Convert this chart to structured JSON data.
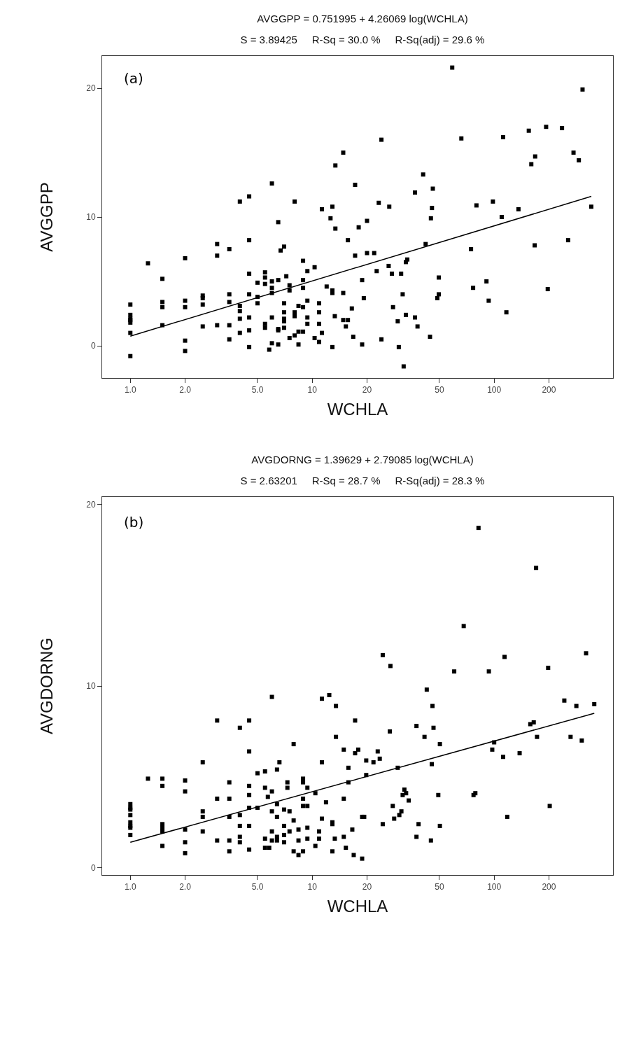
{
  "chart_data": [
    {
      "type": "scatter",
      "title": "AVGGPP = 0.751995 + 4.26069 log(WCHLA)",
      "subtitle": "S = 3.89425     R-Sq = 30.0 %     R-Sq(adj) = 29.6 %",
      "xlabel": "WCHLA",
      "ylabel": "AVGGPP",
      "annotations": [
        "(a)"
      ],
      "log": "x",
      "grid": false,
      "xlim": [
        0.7,
        450
      ],
      "xticks": [
        {
          "value": 1,
          "label": "1.0"
        },
        {
          "value": 2,
          "label": "2.0"
        },
        {
          "value": 5,
          "label": "5.0"
        },
        10,
        20,
        50,
        100,
        200
      ],
      "ylim": [
        -2.5,
        22.5
      ],
      "yticks": [
        0,
        10,
        20
      ],
      "series": [
        {
          "marker": "square",
          "color": "#000000",
          "x": [
            1,
            1,
            1,
            1,
            1,
            1,
            1,
            1.25,
            1.5,
            1.5,
            1.5,
            1.5,
            2,
            2,
            2,
            2,
            2,
            2.5,
            2.5,
            2.5,
            2.5,
            3,
            3,
            3,
            3.5,
            3.5,
            3.5,
            3.5,
            3.5,
            4,
            4,
            4,
            4,
            4,
            4.5,
            4.5,
            4.5,
            4.5,
            4.5,
            4.5,
            4.5,
            5,
            5,
            5,
            5.5,
            5.5,
            5.5,
            5.5,
            5.5,
            5.8,
            6,
            6,
            6,
            6,
            6,
            6,
            6.5,
            6.5,
            6.5,
            6.5,
            6.5,
            6.7,
            7,
            7,
            7,
            7,
            7,
            7,
            7.2,
            7.5,
            7.5,
            7.5,
            8,
            8,
            8,
            8,
            8.4,
            8.4,
            8.4,
            8.9,
            8.9,
            8.9,
            8.9,
            8.9,
            9.4,
            9.4,
            9.4,
            9.4,
            10.3,
            10.3,
            10.9,
            10.9,
            10.9,
            10.9,
            11.3,
            11.3,
            12,
            12.6,
            12.9,
            12.9,
            12.9,
            12.9,
            13.3,
            13.4,
            13.4,
            14.8,
            14.8,
            14.8,
            15.3,
            15.7,
            15.7,
            16.5,
            16.8,
            17.2,
            17.2,
            18,
            18.8,
            18.8,
            19.2,
            20,
            20,
            21.9,
            22.6,
            23.2,
            24,
            24,
            26.3,
            26.5,
            27.4,
            27.8,
            29.5,
            29.9,
            30.8,
            31.4,
            31.8,
            32.7,
            32.7,
            33.3,
            36.7,
            36.7,
            37.9,
            40.7,
            42,
            44.4,
            44.9,
            45.5,
            46,
            48.7,
            49.6,
            49.6,
            58.8,
            66,
            74.6,
            76.6,
            79.9,
            90.7,
            93.3,
            98.4,
            110,
            112,
            116.7,
            136,
            155,
            160,
            167,
            168,
            193,
            197,
            236,
            255,
            273,
            292,
            306,
            342
          ],
          "values": [
            3.2,
            2.4,
            2.1,
            2.0,
            1.8,
            1.0,
            -0.8,
            6.4,
            5.2,
            3.4,
            3.0,
            1.6,
            6.8,
            3.5,
            3.0,
            0.4,
            -0.4,
            3.9,
            3.7,
            3.2,
            1.5,
            7.9,
            7.0,
            1.6,
            7.5,
            4.0,
            3.4,
            1.6,
            0.5,
            11.2,
            3.1,
            2.7,
            2.1,
            1.0,
            11.6,
            8.2,
            5.6,
            4.0,
            2.2,
            1.2,
            -0.1,
            4.9,
            3.8,
            3.3,
            5.7,
            5.3,
            4.8,
            1.7,
            1.4,
            -0.3,
            12.6,
            5.0,
            4.5,
            4.1,
            2.2,
            0.2,
            9.6,
            5.1,
            1.3,
            1.2,
            0.1,
            7.4,
            7.7,
            3.3,
            2.6,
            2.1,
            1.9,
            1.4,
            5.4,
            4.7,
            4.3,
            0.6,
            11.2,
            2.6,
            2.3,
            0.8,
            3.1,
            1.1,
            0.1,
            6.6,
            5.1,
            4.5,
            3.0,
            1.1,
            5.8,
            3.5,
            2.2,
            1.7,
            6.1,
            0.6,
            3.3,
            2.6,
            1.7,
            0.3,
            10.6,
            1.0,
            4.6,
            9.9,
            10.8,
            4.3,
            4.1,
            -0.1,
            2.3,
            14.0,
            9.1,
            15.0,
            4.1,
            2.0,
            1.5,
            8.2,
            2.0,
            2.9,
            0.7,
            12.5,
            7.0,
            9.2,
            5.1,
            0.1,
            3.7,
            9.7,
            7.2,
            7.2,
            5.8,
            11.1,
            16.0,
            0.5,
            6.2,
            10.8,
            5.6,
            3.0,
            1.9,
            -0.1,
            5.6,
            4.0,
            -1.6,
            6.5,
            2.4,
            6.7,
            11.9,
            2.2,
            1.5,
            13.3,
            7.9,
            0.7,
            9.9,
            10.7,
            12.2,
            3.7,
            5.3,
            4.0,
            21.6,
            16.1,
            7.5,
            4.5,
            10.9,
            5.0,
            3.5,
            11.2,
            10.0,
            16.2,
            2.6,
            10.6,
            16.7,
            14.1,
            7.8,
            14.7,
            17.0,
            4.4,
            16.9,
            8.2,
            15.0,
            14.4,
            19.9,
            10.8
          ]
        },
        {
          "type": "line",
          "marker": "none",
          "color": "#000000",
          "x": [
            1,
            342
          ],
          "values": [
            0.75,
            11.6
          ]
        }
      ]
    },
    {
      "type": "scatter",
      "title": "AVGDORNG = 1.39629 + 2.79085 log(WCHLA)",
      "subtitle": "S = 2.63201     R-Sq = 28.7 %     R-Sq(adj) = 28.3 %",
      "xlabel": "WCHLA",
      "ylabel": "AVGDORNG",
      "annotations": [
        "(b)"
      ],
      "log": "x",
      "grid": false,
      "xlim": [
        0.7,
        450
      ],
      "xticks": [
        {
          "value": 1,
          "label": "1.0"
        },
        {
          "value": 2,
          "label": "2.0"
        },
        {
          "value": 5,
          "label": "5.0"
        },
        10,
        20,
        50,
        100,
        200
      ],
      "ylim": [
        -0.4,
        20.4
      ],
      "yticks": [
        0,
        10,
        20
      ],
      "series": [
        {
          "marker": "square",
          "color": "#000000",
          "x": [
            1,
            1,
            1,
            1,
            1,
            1,
            1,
            1,
            1.25,
            1.5,
            1.5,
            1.5,
            1.5,
            1.5,
            1.5,
            2,
            2,
            2,
            2,
            2,
            2.5,
            2.5,
            2.5,
            2.5,
            3,
            3,
            3,
            3.5,
            3.5,
            3.5,
            3.5,
            3.5,
            4,
            4,
            4,
            4,
            4,
            4.5,
            4.5,
            4.5,
            4.5,
            4.5,
            4.5,
            4.5,
            5,
            5,
            5.5,
            5.5,
            5.5,
            5.5,
            5.7,
            5.8,
            6,
            6,
            6,
            6,
            6,
            6.4,
            6.4,
            6.4,
            6.4,
            6.4,
            6.6,
            7,
            7,
            7,
            7,
            7.3,
            7.3,
            7.5,
            7.5,
            7.9,
            7.9,
            7.9,
            8.4,
            8.4,
            8.4,
            8.9,
            8.9,
            8.9,
            8.9,
            8.9,
            9.4,
            9.4,
            9.4,
            9.4,
            10.4,
            10.4,
            10.9,
            10.9,
            11.3,
            11.3,
            11.3,
            11.9,
            12.4,
            12.9,
            12.9,
            12.9,
            13.3,
            13.5,
            13.5,
            14.9,
            14.9,
            14.9,
            15.3,
            15.8,
            15.8,
            16.6,
            16.9,
            17.2,
            17.2,
            17.9,
            18.8,
            18.8,
            19.3,
            19.8,
            19.8,
            21.7,
            22.9,
            23.5,
            24.4,
            24.4,
            26.7,
            26.9,
            27.7,
            28.2,
            29.5,
            30.1,
            30.9,
            31.4,
            32.1,
            32.8,
            33.9,
            37.4,
            37.4,
            38.4,
            41.4,
            42.6,
            44.9,
            45.4,
            45.8,
            46.4,
            49.3,
            50.3,
            50.3,
            60.3,
            68,
            77,
            78.8,
            82,
            93.5,
            97.6,
            100,
            112,
            114,
            118,
            138,
            158,
            165,
            170,
            172,
            198,
            202,
            243,
            263,
            283,
            303,
            320,
            355
          ],
          "values": [
            3.5,
            3.3,
            3.2,
            2.9,
            2.5,
            2.3,
            2.2,
            1.8,
            4.9,
            4.9,
            4.5,
            2.4,
            2.2,
            2.0,
            1.2,
            4.8,
            4.2,
            2.1,
            1.4,
            0.8,
            5.8,
            3.1,
            2.8,
            2.0,
            8.1,
            3.8,
            1.5,
            4.7,
            3.8,
            2.8,
            1.5,
            0.9,
            7.7,
            2.9,
            2.3,
            1.7,
            1.4,
            8.1,
            6.4,
            4.5,
            4.0,
            3.3,
            2.3,
            1.0,
            5.2,
            3.3,
            5.3,
            4.4,
            1.6,
            1.1,
            3.9,
            1.1,
            9.4,
            4.2,
            3.1,
            2.0,
            1.5,
            5.4,
            3.5,
            2.8,
            1.7,
            1.5,
            5.8,
            3.2,
            2.3,
            1.8,
            1.4,
            4.7,
            4.4,
            3.1,
            2.0,
            6.8,
            2.6,
            0.9,
            2.1,
            1.5,
            0.7,
            4.9,
            4.7,
            3.8,
            3.4,
            0.9,
            4.4,
            3.4,
            2.2,
            1.6,
            4.1,
            1.2,
            2.0,
            1.6,
            9.3,
            5.8,
            2.7,
            3.6,
            9.5,
            2.5,
            2.4,
            0.9,
            1.6,
            8.9,
            7.2,
            6.5,
            3.8,
            1.7,
            1.1,
            5.5,
            4.7,
            2.1,
            0.7,
            8.1,
            6.3,
            6.5,
            2.8,
            0.5,
            2.8,
            5.9,
            5.1,
            5.8,
            6.4,
            6.0,
            11.7,
            2.4,
            7.5,
            11.1,
            3.4,
            2.7,
            5.5,
            2.9,
            3.1,
            4.0,
            4.3,
            4.1,
            3.7,
            7.8,
            1.7,
            2.4,
            7.2,
            9.8,
            1.5,
            5.7,
            8.9,
            7.7,
            4.0,
            6.8,
            2.3,
            10.8,
            13.3,
            4.0,
            4.1,
            18.7,
            10.8,
            6.5,
            6.9,
            6.1,
            11.6,
            2.8,
            6.3,
            7.9,
            8.0,
            16.5,
            7.2,
            11.0,
            3.4,
            9.2,
            7.2,
            8.9,
            7.0,
            11.8,
            9.0
          ]
        },
        {
          "type": "line",
          "marker": "none",
          "color": "#000000",
          "x": [
            1,
            355
          ],
          "values": [
            1.4,
            8.5
          ]
        }
      ]
    }
  ]
}
